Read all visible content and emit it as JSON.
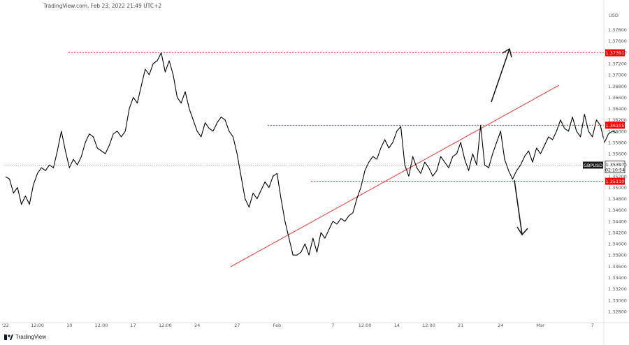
{
  "header": {
    "text": "TradingView.com, Feb 23, 2022 21:49 UTC+2"
  },
  "brand": {
    "name": "TradingView",
    "icon": "tradingview-logo-icon"
  },
  "colors": {
    "line": "#000000",
    "level": "#e03030",
    "badge": "#ff0000",
    "trend": "#e84848",
    "grid_text": "#555555",
    "current_badge": "#1a1a1a"
  },
  "chart_data": {
    "type": "line",
    "symbol": "GBPUSD",
    "currency": "USD",
    "ylim": [
      1.3265,
      1.3813
    ],
    "y_ticks": [
      "1.37800",
      "1.37600",
      "1.37400",
      "1.37200",
      "1.37000",
      "1.36800",
      "1.36600",
      "1.36400",
      "1.36200",
      "1.36000",
      "1.35800",
      "1.35600",
      "1.35400",
      "1.35200",
      "1.35000",
      "1.34800",
      "1.34600",
      "1.34400",
      "1.34200",
      "1.34000",
      "1.33800",
      "1.33600",
      "1.33400",
      "1.33200",
      "1.33000",
      "1.32800"
    ],
    "x_labels": [
      {
        "label": "'22",
        "i": 0
      },
      {
        "label": "12:00",
        "i": 8
      },
      {
        "label": "10",
        "i": 16
      },
      {
        "label": "12:00",
        "i": 24
      },
      {
        "label": "17",
        "i": 32
      },
      {
        "label": "12:00",
        "i": 40
      },
      {
        "label": "24",
        "i": 48
      },
      {
        "label": "27",
        "i": 58
      },
      {
        "label": "Feb",
        "i": 68
      },
      {
        "label": "7",
        "i": 82
      },
      {
        "label": "12:00",
        "i": 90
      },
      {
        "label": "14",
        "i": 98
      },
      {
        "label": "12:00",
        "i": 106
      },
      {
        "label": "21",
        "i": 114
      },
      {
        "label": "24",
        "i": 124
      },
      {
        "label": "Mar",
        "i": 134
      },
      {
        "label": "7",
        "i": 147
      }
    ],
    "n_slots": 150,
    "series": [
      {
        "values": [
          1.3519,
          1.3515,
          1.349,
          1.35,
          1.347,
          1.3485,
          1.347,
          1.3505,
          1.3525,
          1.3535,
          1.353,
          1.354,
          1.3535,
          1.3565,
          1.36,
          1.3565,
          1.3535,
          1.355,
          1.354,
          1.3555,
          1.358,
          1.3595,
          1.359,
          1.357,
          1.3565,
          1.356,
          1.3575,
          1.3595,
          1.36,
          1.359,
          1.36,
          1.364,
          1.366,
          1.365,
          1.368,
          1.371,
          1.37,
          1.372,
          1.3725,
          1.3739,
          1.3705,
          1.3725,
          1.37,
          1.366,
          1.365,
          1.367,
          1.364,
          1.362,
          1.36,
          1.359,
          1.3615,
          1.3605,
          1.36,
          1.3615,
          1.3625,
          1.362,
          1.36,
          1.359,
          1.356,
          1.352,
          1.348,
          1.3465,
          1.349,
          1.348,
          1.3495,
          1.351,
          1.35,
          1.352,
          1.3525,
          1.348,
          1.344,
          1.341,
          1.338,
          1.338,
          1.3385,
          1.34,
          1.338,
          1.341,
          1.3385,
          1.342,
          1.341,
          1.3425,
          1.344,
          1.3435,
          1.3445,
          1.344,
          1.345,
          1.3455,
          1.348,
          1.35,
          1.353,
          1.3545,
          1.3555,
          1.355,
          1.357,
          1.3585,
          1.357,
          1.358,
          1.36,
          1.3608,
          1.354,
          1.352,
          1.3555,
          1.3535,
          1.3525,
          1.3545,
          1.3535,
          1.352,
          1.353,
          1.3555,
          1.3545,
          1.3535,
          1.3555,
          1.356,
          1.358,
          1.355,
          1.353,
          1.356,
          1.354,
          1.361,
          1.354,
          1.3535,
          1.356,
          1.358,
          1.36,
          1.355,
          1.353,
          1.3515,
          1.353,
          1.354,
          1.3555,
          1.3565,
          1.3545,
          1.357,
          1.356,
          1.3575,
          1.359,
          1.3585,
          1.36,
          1.362,
          1.3605,
          1.36,
          1.3625,
          1.36,
          1.359,
          1.363,
          1.36,
          1.359,
          1.362,
          1.361,
          1.358,
          1.3595,
          1.36,
          1.3597
        ]
      }
    ],
    "levels": [
      {
        "value": 1.37391,
        "label": "1.37391"
      },
      {
        "value": 1.36105,
        "label": "1.36105"
      },
      {
        "value": 1.3511,
        "label": "1.35110"
      }
    ],
    "current": {
      "value": 1.35397,
      "price": "1.35397",
      "countdown": "02:10:54"
    }
  }
}
